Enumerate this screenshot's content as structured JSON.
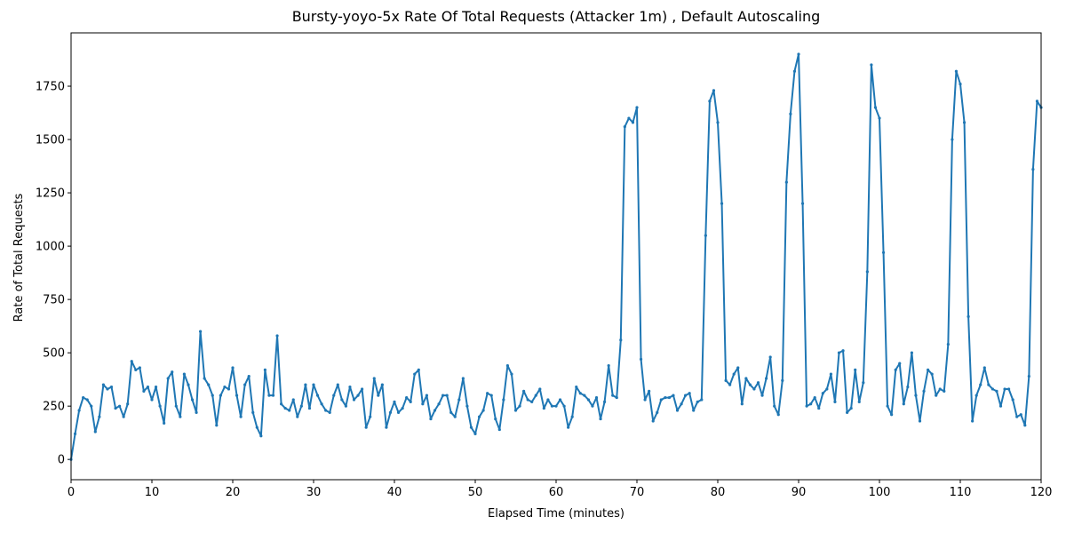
{
  "chart_data": {
    "type": "line",
    "title": "Bursty-yoyo-5x Rate Of Total Requests (Attacker 1m) , Default Autoscaling",
    "xlabel": "Elapsed Time (minutes)",
    "ylabel": "Rate of Total Requests",
    "xlim": [
      0,
      120
    ],
    "ylim": [
      -95,
      2000
    ],
    "xticks": [
      0,
      10,
      20,
      30,
      40,
      50,
      60,
      70,
      80,
      90,
      100,
      110,
      120
    ],
    "yticks": [
      0,
      250,
      500,
      750,
      1000,
      1250,
      1500,
      1750
    ],
    "grid": false,
    "x": [
      0,
      0.5,
      1,
      1.5,
      2,
      2.5,
      3,
      3.5,
      4,
      4.5,
      5,
      5.5,
      6,
      6.5,
      7,
      7.5,
      8,
      8.5,
      9,
      9.5,
      10,
      10.5,
      11,
      11.5,
      12,
      12.5,
      13,
      13.5,
      14,
      14.5,
      15,
      15.5,
      16,
      16.5,
      17,
      17.5,
      18,
      18.5,
      19,
      19.5,
      20,
      20.5,
      21,
      21.5,
      22,
      22.5,
      23,
      23.5,
      24,
      24.5,
      25,
      25.5,
      26,
      26.5,
      27,
      27.5,
      28,
      28.5,
      29,
      29.5,
      30,
      30.5,
      31,
      31.5,
      32,
      32.5,
      33,
      33.5,
      34,
      34.5,
      35,
      35.5,
      36,
      36.5,
      37,
      37.5,
      38,
      38.5,
      39,
      39.5,
      40,
      40.5,
      41,
      41.5,
      42,
      42.5,
      43,
      43.5,
      44,
      44.5,
      45,
      45.5,
      46,
      46.5,
      47,
      47.5,
      48,
      48.5,
      49,
      49.5,
      50,
      50.5,
      51,
      51.5,
      52,
      52.5,
      53,
      53.5,
      54,
      54.5,
      55,
      55.5,
      56,
      56.5,
      57,
      57.5,
      58,
      58.5,
      59,
      59.5,
      60,
      60.5,
      61,
      61.5,
      62,
      62.5,
      63,
      63.5,
      64,
      64.5,
      65,
      65.5,
      66,
      66.5,
      67,
      67.5,
      68,
      68.5,
      69,
      69.5,
      70,
      70.5,
      71,
      71.5,
      72,
      72.5,
      73,
      73.5,
      74,
      74.5,
      75,
      75.5,
      76,
      76.5,
      77,
      77.5,
      78,
      78.5,
      79,
      79.5,
      80,
      80.5,
      81,
      81.5,
      82,
      82.5,
      83,
      83.5,
      84,
      84.5,
      85,
      85.5,
      86,
      86.5,
      87,
      87.5,
      88,
      88.5,
      89,
      89.5,
      90,
      90.5,
      91,
      91.5,
      92,
      92.5,
      93,
      93.5,
      94,
      94.5,
      95,
      95.5,
      96,
      96.5,
      97,
      97.5,
      98,
      98.5,
      99,
      99.5,
      100,
      100.5,
      101,
      101.5,
      102,
      102.5,
      103,
      103.5,
      104,
      104.5,
      105,
      105.5,
      106,
      106.5,
      107,
      107.5,
      108,
      108.5,
      109,
      109.5,
      110,
      110.5,
      111,
      111.5,
      112,
      112.5,
      113,
      113.5,
      114,
      114.5,
      115,
      115.5,
      116,
      116.5,
      117,
      117.5,
      118,
      118.5,
      119,
      119.5,
      120
    ],
    "series": [
      {
        "color": "#1f77b4",
        "values": [
          0,
          120,
          230,
          290,
          280,
          250,
          130,
          200,
          350,
          330,
          340,
          240,
          250,
          200,
          260,
          460,
          420,
          430,
          320,
          340,
          280,
          340,
          250,
          170,
          380,
          410,
          250,
          200,
          400,
          350,
          280,
          220,
          600,
          380,
          350,
          300,
          160,
          300,
          340,
          330,
          430,
          300,
          200,
          350,
          390,
          220,
          150,
          110,
          420,
          300,
          300,
          580,
          260,
          240,
          230,
          280,
          200,
          250,
          350,
          240,
          350,
          300,
          260,
          230,
          220,
          300,
          350,
          280,
          250,
          340,
          280,
          300,
          330,
          150,
          200,
          380,
          300,
          350,
          150,
          220,
          270,
          220,
          240,
          290,
          270,
          400,
          420,
          260,
          300,
          190,
          230,
          260,
          300,
          300,
          220,
          200,
          280,
          380,
          250,
          150,
          120,
          200,
          230,
          310,
          300,
          190,
          140,
          280,
          440,
          400,
          230,
          250,
          320,
          280,
          270,
          300,
          330,
          240,
          280,
          250,
          250,
          280,
          250,
          150,
          200,
          340,
          310,
          300,
          280,
          250,
          290,
          190,
          270,
          440,
          300,
          290,
          560,
          1560,
          1600,
          1580,
          1650,
          470,
          280,
          320,
          180,
          220,
          280,
          290,
          290,
          300,
          230,
          260,
          300,
          310,
          230,
          270,
          280,
          1050,
          1680,
          1730,
          1580,
          1200,
          370,
          350,
          400,
          430,
          260,
          380,
          350,
          330,
          360,
          300,
          380,
          480,
          250,
          210,
          370,
          1300,
          1620,
          1820,
          1900,
          1200,
          250,
          260,
          290,
          240,
          310,
          330,
          400,
          270,
          500,
          510,
          220,
          240,
          420,
          270,
          360,
          880,
          1850,
          1650,
          1600,
          970,
          250,
          210,
          420,
          450,
          260,
          340,
          500,
          300,
          180,
          320,
          420,
          400,
          300,
          330,
          320,
          540,
          1500,
          1820,
          1760,
          1580,
          670,
          180,
          300,
          350,
          430,
          350,
          330,
          320,
          250,
          330,
          330,
          280,
          200,
          210,
          160,
          390,
          1360,
          1680,
          1650
        ]
      }
    ]
  }
}
